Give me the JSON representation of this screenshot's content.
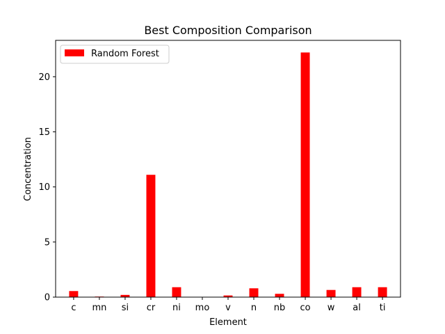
{
  "chart_data": {
    "type": "bar",
    "title": "Best Composition Comparison",
    "xlabel": "Element",
    "ylabel": "Concentration",
    "categories": [
      "c",
      "mn",
      "si",
      "cr",
      "ni",
      "mo",
      "v",
      "n",
      "nb",
      "co",
      "w",
      "al",
      "ti"
    ],
    "series": [
      {
        "name": "Random Forest",
        "color": "#ff0000",
        "values": [
          0.55,
          0.05,
          0.2,
          11.1,
          0.9,
          0.0,
          0.15,
          0.8,
          0.3,
          22.2,
          0.65,
          0.9,
          0.9
        ]
      }
    ],
    "ylim": [
      0,
      23.3
    ],
    "yticks": [
      0,
      5,
      10,
      15,
      20
    ],
    "ytick_labels": [
      "0",
      "5",
      "10",
      "15",
      "20"
    ],
    "grid": false,
    "legend_position": "top-left"
  }
}
